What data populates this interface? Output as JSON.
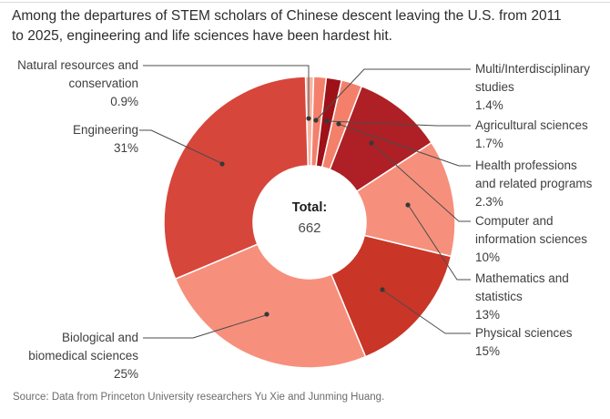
{
  "title": "Among the departures of STEM scholars of Chinese descent leaving the U.S. from 2011\nto 2025, engineering and life sciences have been hardest hit.",
  "source": "Source: Data from Princeton University researchers Yu Xie and Junming Huang.",
  "chart_data": {
    "type": "pie",
    "subtype": "donut",
    "title": "Among the departures of STEM scholars of Chinese descent leaving the U.S. from 2011 to 2025, engineering and life sciences have been hardest hit.",
    "total_label": "Total:",
    "total_value": "662",
    "unit": "%",
    "legend_position": "callout-labels",
    "categories": [
      "Natural resources and conservation",
      "Multi/Interdisciplinary studies",
      "Agricultural sciences",
      "Health professions and related programs",
      "Computer and information sciences",
      "Mathematics and statistics",
      "Physical sciences",
      "Biological and biomedical sciences",
      "Engineering"
    ],
    "values": [
      0.9,
      1.4,
      1.7,
      2.3,
      10,
      13,
      15,
      25,
      31
    ],
    "slices": [
      {
        "name": "Natural resources and\nconservation",
        "pct": "0.9%",
        "value": 0.9,
        "color": "#f7b2a2"
      },
      {
        "name": "Multi/Interdisciplinary\nstudies",
        "pct": "1.4%",
        "value": 1.4,
        "color": "#f4806b"
      },
      {
        "name": "Agricultural sciences",
        "pct": "1.7%",
        "value": 1.7,
        "color": "#9e1118"
      },
      {
        "name": "Health professions\nand related programs",
        "pct": "2.3%",
        "value": 2.3,
        "color": "#f4806b"
      },
      {
        "name": "Computer and\ninformation sciences",
        "pct": "10%",
        "value": 10,
        "color": "#ae2025"
      },
      {
        "name": "Mathematics and\nstatistics",
        "pct": "13%",
        "value": 13,
        "color": "#f6907c"
      },
      {
        "name": "Physical sciences",
        "pct": "15%",
        "value": 15,
        "color": "#c93527"
      },
      {
        "name": "Biological and\nbiomedical sciences",
        "pct": "25%",
        "value": 25,
        "color": "#f6907c"
      },
      {
        "name": "Engineering",
        "pct": "31%",
        "value": 31,
        "color": "#d7463b"
      }
    ],
    "colors": [
      "#f7b2a2",
      "#f4806b",
      "#9e1118",
      "#f4806b",
      "#ae2025",
      "#f6907c",
      "#c93527",
      "#f6907c",
      "#d7463b"
    ],
    "leader_line_color": "#4c4c4c",
    "separator_color": "#ffffff"
  }
}
